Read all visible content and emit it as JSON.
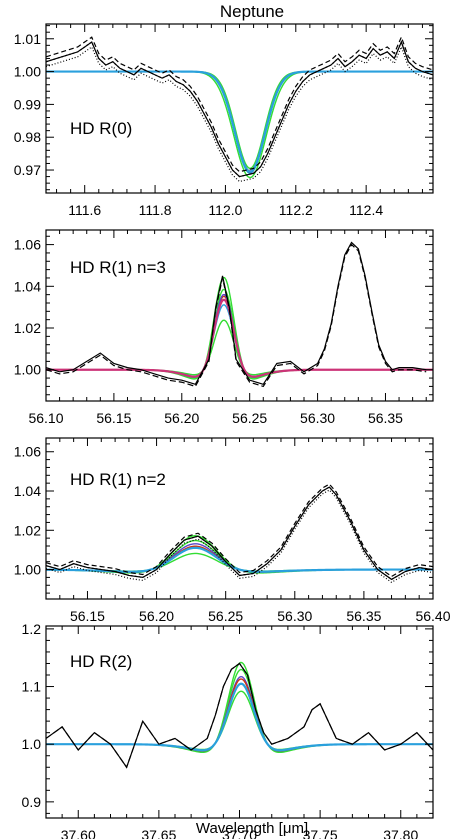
{
  "figure": {
    "title": "Neptune",
    "xlabel": "Wavelength [μm]"
  },
  "colors": {
    "axis": "#000000",
    "observed": "#000000",
    "model_green": "#33dd33",
    "model_blue_light": "#2aa0dd",
    "model_purple": "#5b47c8",
    "model_magenta": "#cc3377",
    "model_red": "#cc3311",
    "model_cyan": "#16c4c4"
  },
  "chart_data": [
    {
      "type": "line",
      "label": "HD R(0)",
      "xlim": [
        111.49,
        112.59
      ],
      "ylim": [
        0.963,
        1.0145
      ],
      "xticks": [
        111.6,
        111.8,
        112.0,
        112.2,
        112.4
      ],
      "xtick_labels": [
        "111.6",
        "111.8",
        "112.0",
        "112.2",
        "112.4"
      ],
      "yticks": [
        0.97,
        0.98,
        0.99,
        1.0,
        1.01
      ],
      "ytick_labels": [
        "0.97",
        "0.98",
        "0.99",
        "1.00",
        "1.01"
      ],
      "line": {
        "center": 112.07,
        "baseline": 1.0
      },
      "models": [
        {
          "color": "green",
          "depth": -0.0323,
          "width": 0.092
        },
        {
          "color": "green",
          "depth": -0.0295,
          "width": 0.082
        },
        {
          "color": "cyan",
          "depth": -0.031,
          "width": 0.087
        },
        {
          "color": "purple",
          "depth": -0.0308,
          "width": 0.086
        },
        {
          "color": "magenta",
          "depth": -0.0303,
          "width": 0.085
        },
        {
          "color": "blue_light",
          "depth": -0.0305,
          "width": 0.086
        }
      ],
      "observed": {
        "x": [
          111.49,
          111.52,
          111.55,
          111.58,
          111.6,
          111.62,
          111.64,
          111.66,
          111.68,
          111.7,
          111.72,
          111.74,
          111.76,
          111.78,
          111.8,
          111.82,
          111.84,
          111.86,
          111.88,
          111.9,
          111.92,
          111.94,
          111.96,
          111.98,
          112.0,
          112.02,
          112.04,
          112.06,
          112.08,
          112.1,
          112.12,
          112.14,
          112.16,
          112.18,
          112.2,
          112.22,
          112.24,
          112.26,
          112.28,
          112.3,
          112.32,
          112.34,
          112.36,
          112.38,
          112.4,
          112.42,
          112.44,
          112.46,
          112.48,
          112.5,
          112.52,
          112.54,
          112.56,
          112.59
        ],
        "y": [
          1.003,
          1.004,
          1.005,
          1.006,
          1.0075,
          1.009,
          1.004,
          1.002,
          1.003,
          1.001,
          1.0,
          0.999,
          1.001,
          1.0,
          0.999,
          0.998,
          0.999,
          0.997,
          0.996,
          0.994,
          0.991,
          0.987,
          0.983,
          0.978,
          0.974,
          0.97,
          0.968,
          0.9685,
          0.969,
          0.971,
          0.975,
          0.98,
          0.985,
          0.99,
          0.994,
          0.997,
          0.999,
          1.0,
          1.001,
          1.002,
          1.004,
          1.0015,
          1.003,
          1.005,
          1.004,
          1.007,
          1.005,
          1.006,
          1.004,
          1.009,
          1.003,
          1.001,
          1.0,
          0.999
        ]
      }
    },
    {
      "type": "line",
      "label": "HD R(1) n=3",
      "xlim": [
        56.1,
        56.385
      ],
      "ylim": [
        0.985,
        1.067
      ],
      "xticks": [
        56.1,
        56.15,
        56.2,
        56.25,
        56.3,
        56.35
      ],
      "xtick_labels": [
        "56.10",
        "56.15",
        "56.20",
        "56.25",
        "56.30",
        "56.35"
      ],
      "yticks": [
        1.0,
        1.02,
        1.04,
        1.06
      ],
      "ytick_labels": [
        "1.00",
        "1.02",
        "1.04",
        "1.06"
      ],
      "line": {
        "center": 56.231,
        "baseline": 1.0
      },
      "models": [
        {
          "color": "red",
          "peak": 0.043,
          "width": 0.0075
        },
        {
          "color": "green",
          "peak": 0.054,
          "width": 0.0075
        },
        {
          "color": "green",
          "peak": 0.029,
          "width": 0.0075
        },
        {
          "color": "green",
          "peak": 0.047,
          "width": 0.0075
        },
        {
          "color": "purple",
          "peak": 0.044,
          "width": 0.0075
        },
        {
          "color": "blue_light",
          "peak": 0.038,
          "width": 0.0075
        },
        {
          "color": "magenta",
          "peak": 0.041,
          "width": 0.0075
        }
      ],
      "observed": {
        "x": [
          56.1,
          56.11,
          56.12,
          56.13,
          56.14,
          56.15,
          56.16,
          56.17,
          56.18,
          56.19,
          56.2,
          56.21,
          56.22,
          56.225,
          56.23,
          56.235,
          56.24,
          56.25,
          56.26,
          56.27,
          56.28,
          56.29,
          56.3,
          56.305,
          56.31,
          56.315,
          56.32,
          56.325,
          56.33,
          56.335,
          56.34,
          56.345,
          56.35,
          56.355,
          56.36,
          56.37,
          56.38
        ],
        "y": [
          1.001,
          0.999,
          1.0,
          1.004,
          1.008,
          1.003,
          1.001,
          1.0,
          0.998,
          0.996,
          0.995,
          0.993,
          1.005,
          1.03,
          1.045,
          1.03,
          1.005,
          0.995,
          0.993,
          1.003,
          1.004,
          0.999,
          1.003,
          1.01,
          1.022,
          1.04,
          1.055,
          1.061,
          1.058,
          1.045,
          1.028,
          1.012,
          1.004,
          1.0,
          1.001,
          1.001,
          1.0
        ]
      }
    },
    {
      "type": "line",
      "label": "HD R(1) n=2",
      "xlim": [
        56.12,
        56.4
      ],
      "ylim": [
        0.985,
        1.067
      ],
      "xticks": [
        56.15,
        56.2,
        56.25,
        56.3,
        56.35,
        56.4
      ],
      "xtick_labels": [
        "56.15",
        "56.20",
        "56.25",
        "56.30",
        "56.35",
        "56.40"
      ],
      "yticks": [
        1.0,
        1.02,
        1.04,
        1.06
      ],
      "ytick_labels": [
        "1.00",
        "1.02",
        "1.04",
        "1.06"
      ],
      "line": {
        "center": 56.228,
        "baseline": 1.0
      },
      "models": [
        {
          "color": "green",
          "peak": 0.021,
          "width": 0.016
        },
        {
          "color": "green",
          "peak": 0.01,
          "width": 0.016
        },
        {
          "color": "green",
          "peak": 0.018,
          "width": 0.016
        },
        {
          "color": "purple",
          "peak": 0.016,
          "width": 0.016
        },
        {
          "color": "red",
          "peak": 0.0145,
          "width": 0.016
        },
        {
          "color": "blue_light",
          "peak": 0.0135,
          "width": 0.016
        }
      ],
      "observed": {
        "x": [
          56.12,
          56.13,
          56.14,
          56.15,
          56.16,
          56.17,
          56.18,
          56.19,
          56.2,
          56.21,
          56.22,
          56.23,
          56.24,
          56.25,
          56.26,
          56.27,
          56.28,
          56.29,
          56.3,
          56.31,
          56.32,
          56.325,
          56.33,
          56.34,
          56.35,
          56.36,
          56.37,
          56.38,
          56.39,
          56.4
        ],
        "y": [
          1.002,
          1.0,
          1.003,
          1.001,
          1.0,
          0.999,
          0.997,
          0.996,
          1.0,
          1.008,
          1.015,
          1.017,
          1.012,
          1.004,
          0.997,
          0.998,
          1.003,
          1.01,
          1.022,
          1.033,
          1.04,
          1.042,
          1.038,
          1.025,
          1.01,
          1.0,
          0.995,
          0.999,
          1.001,
          1.0
        ]
      }
    },
    {
      "type": "line",
      "label": "HD R(2)",
      "xlim": [
        37.58,
        37.82
      ],
      "ylim": [
        0.872,
        1.205
      ],
      "xticks": [
        37.6,
        37.65,
        37.7,
        37.75,
        37.8
      ],
      "xtick_labels": [
        "37.60",
        "37.65",
        "37.70",
        "37.75",
        "37.80"
      ],
      "yticks": [
        0.9,
        1.0,
        1.1,
        1.2
      ],
      "ytick_labels": [
        "0.9",
        "1.0",
        "1.1",
        "1.2"
      ],
      "line": {
        "center": 37.701,
        "baseline": 1.0
      },
      "models": [
        {
          "color": "green",
          "peak": 0.173,
          "width": 0.0082
        },
        {
          "color": "green",
          "peak": 0.112,
          "width": 0.0082
        },
        {
          "color": "green",
          "peak": 0.158,
          "width": 0.0082
        },
        {
          "color": "purple",
          "peak": 0.143,
          "width": 0.0082
        },
        {
          "color": "red",
          "peak": 0.138,
          "width": 0.0082
        },
        {
          "color": "blue_light",
          "peak": 0.128,
          "width": 0.0082
        }
      ],
      "observed": {
        "x": [
          37.58,
          37.59,
          37.6,
          37.61,
          37.62,
          37.63,
          37.64,
          37.65,
          37.66,
          37.67,
          37.68,
          37.685,
          37.69,
          37.695,
          37.7,
          37.705,
          37.71,
          37.715,
          37.72,
          37.73,
          37.74,
          37.745,
          37.75,
          37.755,
          37.76,
          37.77,
          37.78,
          37.79,
          37.8,
          37.81,
          37.82
        ],
        "y": [
          1.01,
          1.03,
          0.99,
          1.02,
          1.0,
          0.96,
          1.04,
          1.0,
          1.01,
          0.99,
          1.01,
          1.05,
          1.1,
          1.13,
          1.14,
          1.12,
          1.06,
          1.02,
          1.0,
          1.01,
          1.03,
          1.06,
          1.07,
          1.04,
          1.01,
          1.0,
          1.02,
          0.99,
          1.0,
          1.02,
          0.99
        ]
      }
    }
  ]
}
